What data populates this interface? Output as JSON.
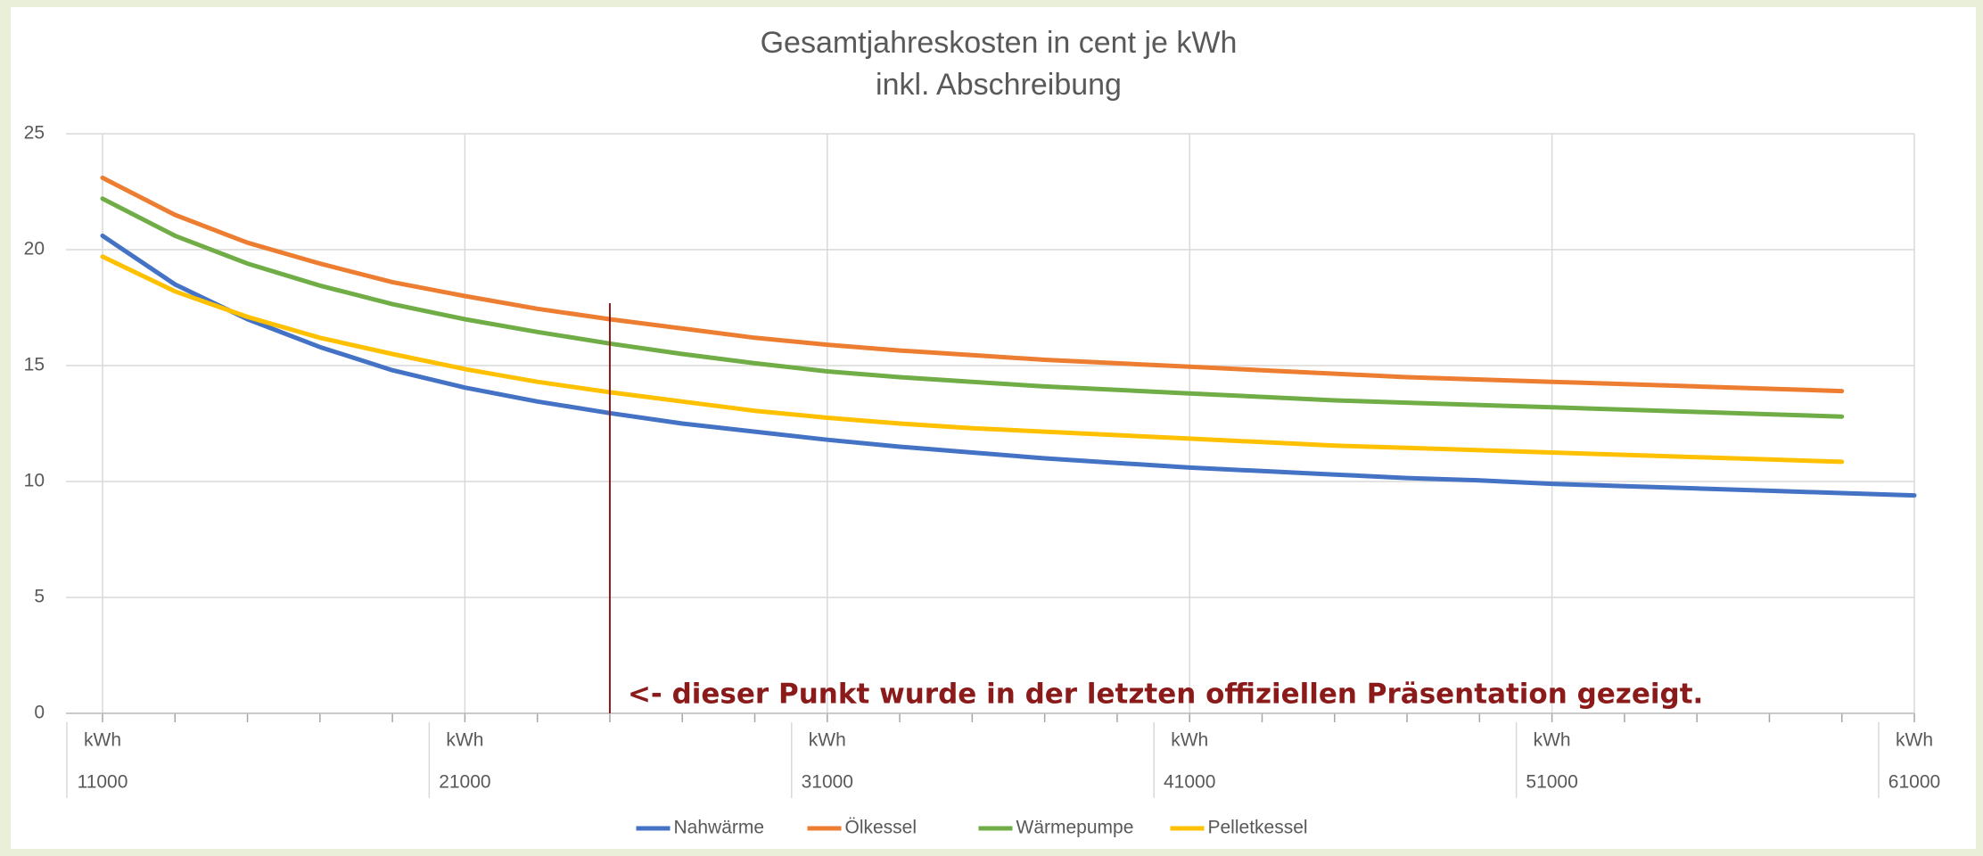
{
  "chart_data": {
    "type": "line",
    "title": "Gesamtjahreskosten in cent je kWh",
    "subtitle": "inkl. Abschreibung",
    "x": [
      11000,
      13000,
      15000,
      17000,
      19000,
      21000,
      23000,
      25000,
      27000,
      29000,
      31000,
      33000,
      35000,
      37000,
      39000,
      41000,
      43000,
      45000,
      47000,
      49000,
      51000,
      53000,
      55000,
      57000,
      59000,
      61000
    ],
    "x_unit": "kWh",
    "xlim": [
      11000,
      61000
    ],
    "xticks": [
      11000,
      21000,
      31000,
      41000,
      51000,
      61000
    ],
    "ylim": [
      0,
      25
    ],
    "yticks": [
      0,
      5,
      10,
      15,
      20,
      25
    ],
    "grid": true,
    "legend": "bottom",
    "series": [
      {
        "name": "Nahwärme",
        "color": "#4472c4",
        "values": [
          20.6,
          18.5,
          17.0,
          15.8,
          14.8,
          14.05,
          13.45,
          12.95,
          12.5,
          12.15,
          11.8,
          11.5,
          11.25,
          11.0,
          10.8,
          10.6,
          10.45,
          10.3,
          10.15,
          10.05,
          9.9,
          9.8,
          9.7,
          9.6,
          9.5,
          9.4
        ]
      },
      {
        "name": "Ölkessel",
        "color": "#ed7d31",
        "values": [
          23.1,
          21.5,
          20.3,
          19.4,
          18.6,
          18.0,
          17.45,
          17.0,
          16.6,
          16.2,
          15.9,
          15.65,
          15.45,
          15.25,
          15.1,
          14.95,
          14.8,
          14.65,
          14.5,
          14.4,
          14.3,
          14.2,
          14.1,
          14.0,
          13.9,
          null
        ]
      },
      {
        "name": "Wärmepumpe",
        "color": "#70ad47",
        "values": [
          22.2,
          20.6,
          19.4,
          18.45,
          17.65,
          17.0,
          16.45,
          15.95,
          15.5,
          15.1,
          14.75,
          14.5,
          14.3,
          14.1,
          13.95,
          13.8,
          13.65,
          13.5,
          13.4,
          13.3,
          13.2,
          13.1,
          13.0,
          12.9,
          12.8,
          null
        ]
      },
      {
        "name": "Pelletkessel",
        "color": "#ffc000",
        "values": [
          19.7,
          18.2,
          17.1,
          16.2,
          15.5,
          14.85,
          14.3,
          13.85,
          13.45,
          13.05,
          12.75,
          12.5,
          12.3,
          12.15,
          12.0,
          11.85,
          11.7,
          11.55,
          11.45,
          11.35,
          11.25,
          11.15,
          11.05,
          10.95,
          10.85,
          null
        ]
      }
    ],
    "annotation": {
      "text": "<- dieser Punkt wurde in der letzten offiziellen Präsentation gezeigt.",
      "x": 25000,
      "color": "#8b1a1a"
    }
  }
}
